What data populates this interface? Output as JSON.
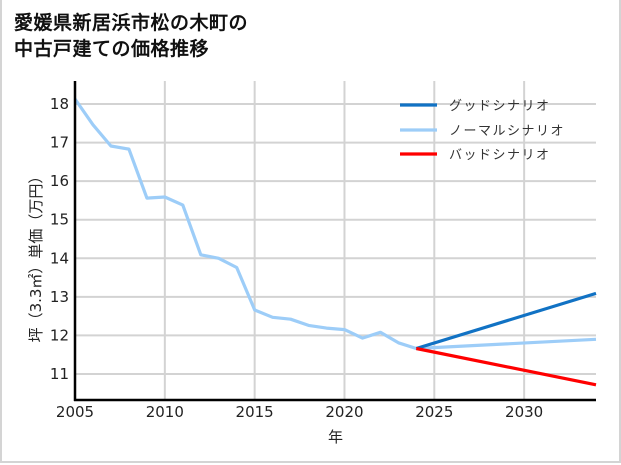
{
  "title": {
    "line1": "愛媛県新居浜市松の木町の",
    "line2": "中古戸建ての価格推移"
  },
  "chart_data": {
    "type": "line",
    "title": "愛媛県新居浜市松の木町の中古戸建ての価格推移",
    "xlabel": "年",
    "ylabel": "坪（3.3㎡）単価（万円）",
    "xlim": [
      2005,
      2034
    ],
    "ylim": [
      10.35,
      18.6
    ],
    "xticks": [
      2005,
      2010,
      2015,
      2020,
      2025,
      2030
    ],
    "yticks": [
      11,
      12,
      13,
      14,
      15,
      16,
      17,
      18
    ],
    "grid": true,
    "legend_position": "upper right",
    "series": [
      {
        "name": "グッドシナリオ",
        "color": "#1172c4",
        "x": [
          2024,
          2034
        ],
        "values": [
          11.66,
          13.09
        ]
      },
      {
        "name": "ノーマルシナリオ",
        "color": "#9dcdf8",
        "x": [
          2005,
          2006,
          2007,
          2008,
          2009,
          2010,
          2011,
          2012,
          2013,
          2014,
          2015,
          2016,
          2017,
          2018,
          2019,
          2020,
          2021,
          2022,
          2023,
          2024,
          2034
        ],
        "values": [
          18.13,
          17.46,
          16.91,
          16.83,
          15.56,
          15.59,
          15.38,
          14.09,
          14.0,
          13.76,
          12.66,
          12.47,
          12.42,
          12.26,
          12.19,
          12.15,
          11.93,
          12.08,
          11.81,
          11.66,
          11.9
        ]
      },
      {
        "name": "バッドシナリオ",
        "color": "#ff0000",
        "x": [
          2024,
          2034
        ],
        "values": [
          11.66,
          10.72
        ]
      }
    ]
  }
}
